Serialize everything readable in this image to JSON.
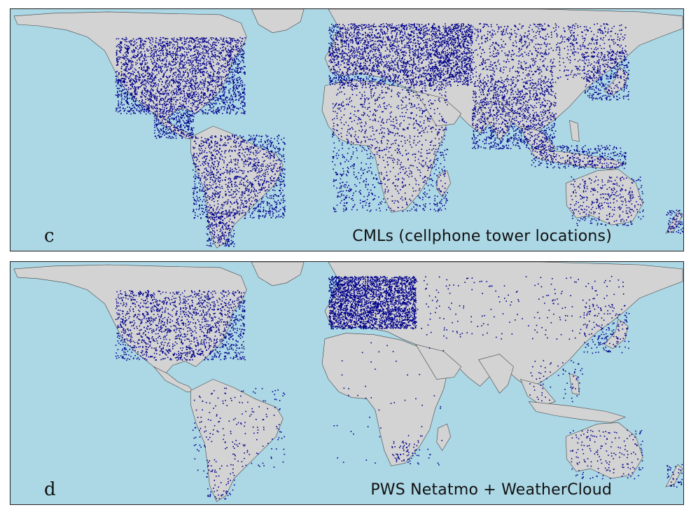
{
  "panels": [
    {
      "id": "c",
      "letter": "c",
      "caption": "CMLs (cellphone tower locations)",
      "density": "high"
    },
    {
      "id": "d",
      "letter": "d",
      "caption": "PWS Netatmo + WeatherCloud",
      "density": "low"
    }
  ],
  "colors": {
    "ocean": "#acd7e5",
    "land": "#d3d3d3",
    "coast": "#444444",
    "points": "#00008b"
  }
}
